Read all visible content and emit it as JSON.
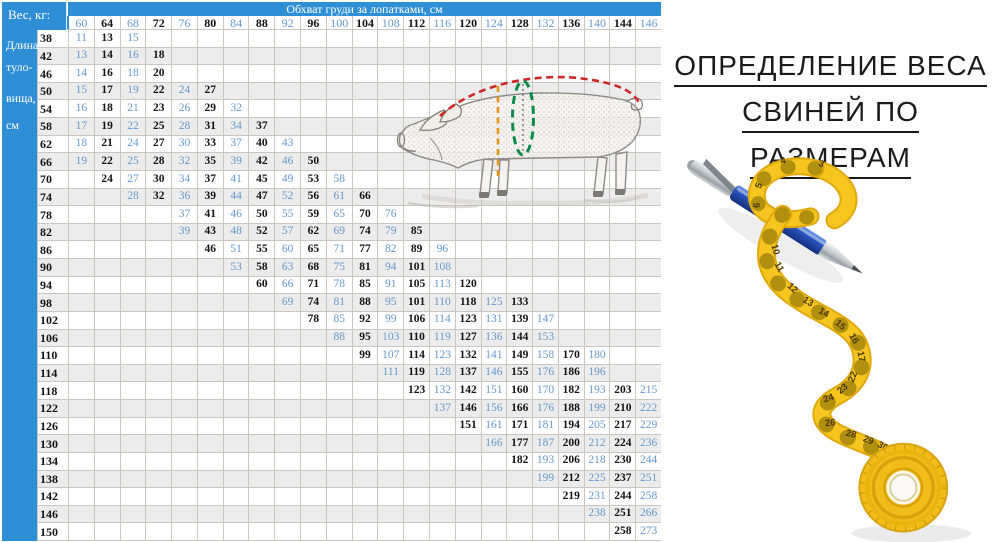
{
  "table": {
    "corner_label": "Вес, кг:",
    "girth_header": "Обхват груди за лопатками, см",
    "length_label_lines": [
      "Длина",
      "туло-",
      "вища,",
      "см"
    ],
    "columns": [
      60,
      64,
      68,
      72,
      76,
      80,
      84,
      88,
      92,
      96,
      100,
      104,
      108,
      112,
      116,
      120,
      124,
      128,
      132,
      136,
      140,
      144,
      146
    ],
    "rows": [
      {
        "length": 38,
        "cells": [
          11,
          13,
          15,
          null,
          null,
          null,
          null,
          null,
          null,
          null,
          null,
          null,
          null,
          null,
          null,
          null,
          null,
          null,
          null,
          null,
          null,
          null,
          null
        ]
      },
      {
        "length": 42,
        "cells": [
          13,
          14,
          16,
          18,
          null,
          null,
          null,
          null,
          null,
          null,
          null,
          null,
          null,
          null,
          null,
          null,
          null,
          null,
          null,
          null,
          null,
          null,
          null
        ]
      },
      {
        "length": 46,
        "cells": [
          14,
          16,
          18,
          20,
          null,
          null,
          null,
          null,
          null,
          null,
          null,
          null,
          null,
          null,
          null,
          null,
          null,
          null,
          null,
          null,
          null,
          null,
          null
        ]
      },
      {
        "length": 50,
        "cells": [
          15,
          17,
          19,
          22,
          24,
          27,
          null,
          null,
          null,
          null,
          null,
          null,
          null,
          null,
          null,
          null,
          null,
          null,
          null,
          null,
          null,
          null,
          null
        ]
      },
      {
        "length": 54,
        "cells": [
          16,
          18,
          21,
          23,
          26,
          29,
          32,
          null,
          null,
          null,
          null,
          null,
          null,
          null,
          null,
          null,
          null,
          null,
          null,
          null,
          null,
          null,
          null
        ]
      },
      {
        "length": 58,
        "cells": [
          17,
          19,
          22,
          25,
          28,
          31,
          34,
          37,
          null,
          null,
          null,
          null,
          null,
          null,
          null,
          null,
          null,
          null,
          null,
          null,
          null,
          null,
          null
        ]
      },
      {
        "length": 62,
        "cells": [
          18,
          21,
          24,
          27,
          30,
          33,
          37,
          40,
          43,
          null,
          null,
          null,
          null,
          null,
          null,
          null,
          null,
          null,
          null,
          null,
          null,
          null,
          null
        ]
      },
      {
        "length": 66,
        "cells": [
          19,
          22,
          25,
          28,
          32,
          35,
          39,
          42,
          46,
          50,
          null,
          null,
          null,
          null,
          null,
          null,
          null,
          null,
          null,
          null,
          null,
          null,
          null
        ]
      },
      {
        "length": 70,
        "cells": [
          null,
          24,
          27,
          30,
          34,
          37,
          41,
          45,
          49,
          53,
          58,
          null,
          null,
          null,
          null,
          null,
          null,
          null,
          null,
          null,
          null,
          null,
          null
        ]
      },
      {
        "length": 74,
        "cells": [
          null,
          null,
          28,
          32,
          36,
          39,
          44,
          47,
          52,
          56,
          61,
          66,
          null,
          null,
          null,
          null,
          null,
          null,
          null,
          null,
          null,
          null,
          null
        ]
      },
      {
        "length": 78,
        "cells": [
          null,
          null,
          null,
          null,
          37,
          41,
          46,
          50,
          55,
          59,
          65,
          70,
          76,
          null,
          null,
          null,
          null,
          null,
          null,
          null,
          null,
          null,
          null
        ]
      },
      {
        "length": 82,
        "cells": [
          null,
          null,
          null,
          null,
          39,
          43,
          48,
          52,
          57,
          62,
          69,
          74,
          79,
          85,
          null,
          null,
          null,
          null,
          null,
          null,
          null,
          null,
          null
        ]
      },
      {
        "length": 86,
        "cells": [
          null,
          null,
          null,
          null,
          null,
          46,
          51,
          55,
          60,
          65,
          71,
          77,
          82,
          89,
          96,
          null,
          null,
          null,
          null,
          null,
          null,
          null,
          null
        ]
      },
      {
        "length": 90,
        "cells": [
          null,
          null,
          null,
          null,
          null,
          null,
          53,
          58,
          63,
          68,
          75,
          81,
          94,
          101,
          108,
          null,
          null,
          null,
          null,
          null,
          null,
          null,
          null
        ]
      },
      {
        "length": 94,
        "cells": [
          null,
          null,
          null,
          null,
          null,
          null,
          null,
          60,
          66,
          71,
          78,
          85,
          91,
          105,
          113,
          120,
          null,
          null,
          null,
          null,
          null,
          null,
          null
        ]
      },
      {
        "length": 98,
        "cells": [
          null,
          null,
          null,
          null,
          null,
          null,
          null,
          null,
          69,
          74,
          81,
          88,
          95,
          101,
          110,
          118,
          125,
          133,
          null,
          null,
          null,
          null,
          null
        ]
      },
      {
        "length": 102,
        "cells": [
          null,
          null,
          null,
          null,
          null,
          null,
          null,
          null,
          null,
          78,
          85,
          92,
          99,
          106,
          114,
          123,
          131,
          139,
          147,
          null,
          null,
          null,
          null
        ]
      },
      {
        "length": 106,
        "cells": [
          null,
          null,
          null,
          null,
          null,
          null,
          null,
          null,
          null,
          null,
          88,
          95,
          103,
          110,
          119,
          127,
          136,
          144,
          153,
          null,
          null,
          null,
          null
        ]
      },
      {
        "length": 110,
        "cells": [
          null,
          null,
          null,
          null,
          null,
          null,
          null,
          null,
          null,
          null,
          null,
          99,
          107,
          114,
          123,
          132,
          141,
          149,
          158,
          170,
          180,
          null,
          null
        ]
      },
      {
        "length": 114,
        "cells": [
          null,
          null,
          null,
          null,
          null,
          null,
          null,
          null,
          null,
          null,
          null,
          null,
          111,
          119,
          128,
          137,
          146,
          155,
          176,
          186,
          196,
          null,
          null
        ]
      },
      {
        "length": 118,
        "cells": [
          null,
          null,
          null,
          null,
          null,
          null,
          null,
          null,
          null,
          null,
          null,
          null,
          null,
          123,
          132,
          142,
          151,
          160,
          170,
          182,
          193,
          203,
          215
        ]
      },
      {
        "length": 122,
        "cells": [
          null,
          null,
          null,
          null,
          null,
          null,
          null,
          null,
          null,
          null,
          null,
          null,
          null,
          null,
          137,
          146,
          156,
          166,
          176,
          188,
          199,
          210,
          222
        ]
      },
      {
        "length": 126,
        "cells": [
          null,
          null,
          null,
          null,
          null,
          null,
          null,
          null,
          null,
          null,
          null,
          null,
          null,
          null,
          null,
          151,
          161,
          171,
          181,
          194,
          205,
          217,
          229
        ]
      },
      {
        "length": 130,
        "cells": [
          null,
          null,
          null,
          null,
          null,
          null,
          null,
          null,
          null,
          null,
          null,
          null,
          null,
          null,
          null,
          null,
          166,
          177,
          187,
          200,
          212,
          224,
          236
        ]
      },
      {
        "length": 134,
        "cells": [
          null,
          null,
          null,
          null,
          null,
          null,
          null,
          null,
          null,
          null,
          null,
          null,
          null,
          null,
          null,
          null,
          null,
          182,
          193,
          206,
          218,
          230,
          244
        ]
      },
      {
        "length": 138,
        "cells": [
          null,
          null,
          null,
          null,
          null,
          null,
          null,
          null,
          null,
          null,
          null,
          null,
          null,
          null,
          null,
          null,
          null,
          null,
          199,
          212,
          225,
          237,
          251
        ]
      },
      {
        "length": 142,
        "cells": [
          null,
          null,
          null,
          null,
          null,
          null,
          null,
          null,
          null,
          null,
          null,
          null,
          null,
          null,
          null,
          null,
          null,
          null,
          null,
          219,
          231,
          244,
          258
        ]
      },
      {
        "length": 146,
        "cells": [
          null,
          null,
          null,
          null,
          null,
          null,
          null,
          null,
          null,
          null,
          null,
          null,
          null,
          null,
          null,
          null,
          null,
          null,
          null,
          null,
          238,
          251,
          266
        ]
      },
      {
        "length": 150,
        "cells": [
          null,
          null,
          null,
          null,
          null,
          null,
          null,
          null,
          null,
          null,
          null,
          null,
          null,
          null,
          null,
          null,
          null,
          null,
          null,
          null,
          null,
          258,
          273
        ]
      }
    ]
  },
  "title": {
    "lines": [
      "ОПРЕДЕЛЕНИЕ ВЕСА",
      "СВИНЕЙ ПО",
      "РАЗМЕРАМ"
    ]
  },
  "illustrations": {
    "pig_diagram_name": "pig-measurement-sketch",
    "pen_tape_name": "pen-with-measuring-tape",
    "tape_numbers": [
      "3",
      "4",
      "5",
      "6",
      "10",
      "11",
      "12",
      "13",
      "14",
      "15",
      "16",
      "17",
      "22",
      "23",
      "24",
      "26",
      "28",
      "29",
      "30",
      "31"
    ]
  },
  "colors": {
    "header_blue": "#2f8fd6",
    "blue_text": "#6699cc",
    "black_text": "#141414",
    "grid_line": "#c9c7c4",
    "row_alt": "#ececec",
    "length_line_red": "#cc2a28",
    "front_line_orange": "#e8941c",
    "girth_line_green": "#0c8a48",
    "tape_yellow": "#f6c51f",
    "pen_blue": "#2a54c0"
  }
}
